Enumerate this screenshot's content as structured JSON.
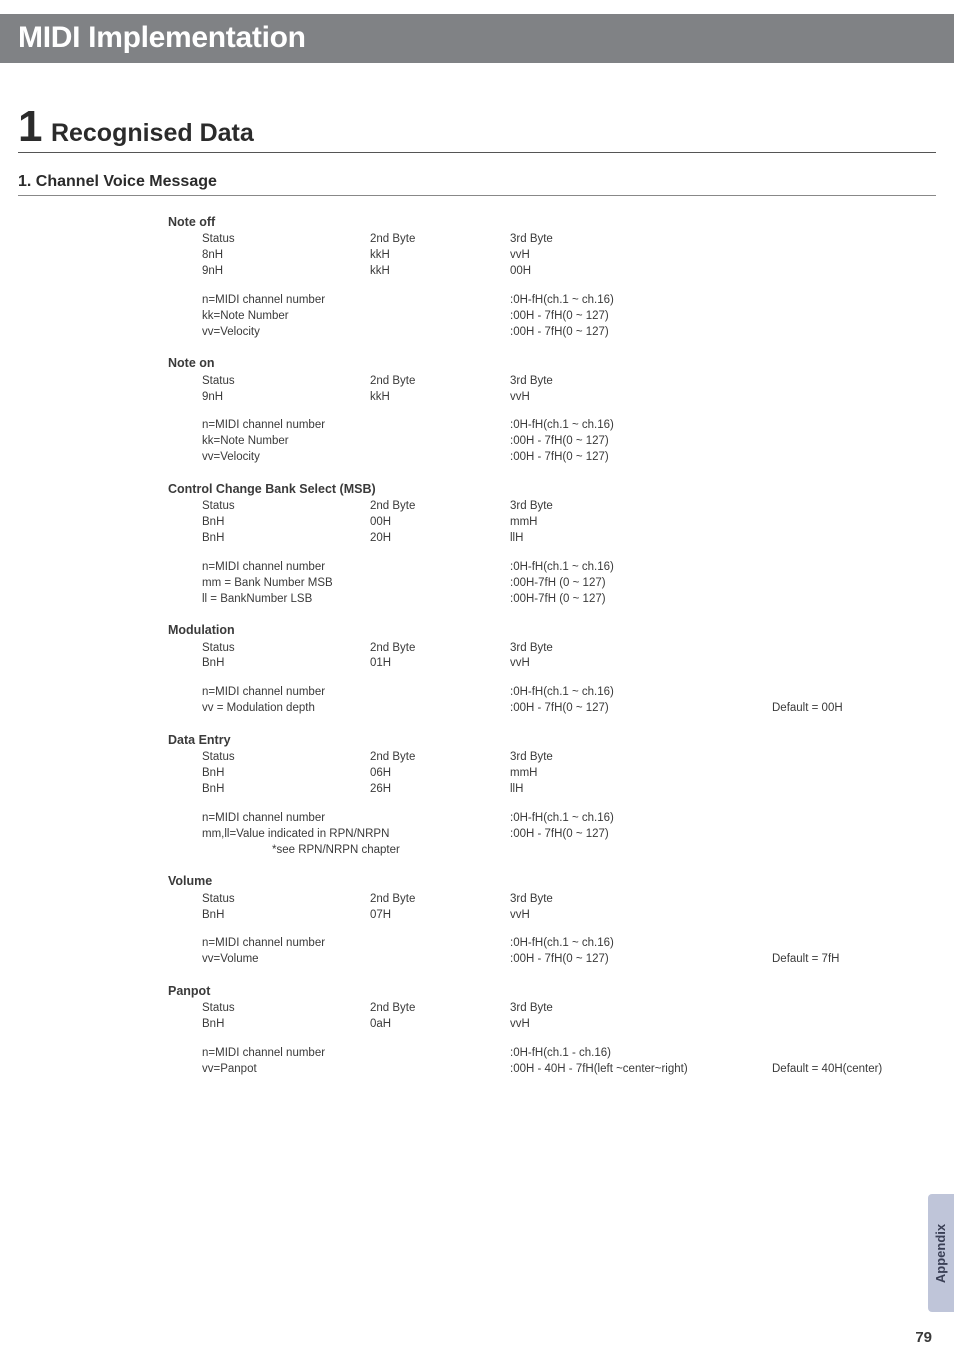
{
  "page": {
    "title": "MIDI Implementation",
    "section_number": "1",
    "section_title": "Recognised Data",
    "subsection": "1. Channel Voice Message",
    "side_tab": "Appendix",
    "page_number": "79"
  },
  "messages": [
    {
      "title": "Note off",
      "cols": [
        [
          "Status",
          "2nd Byte",
          "3rd Byte"
        ],
        [
          "8nH",
          "kkH",
          "vvH"
        ],
        [
          "9nH",
          "kkH",
          "00H"
        ]
      ],
      "defs": [
        [
          "n=MIDI channel number",
          ":0H-fH(ch.1 ~ ch.16)"
        ],
        [
          "kk=Note Number",
          ":00H - 7fH(0 ~ 127)"
        ],
        [
          "vv=Velocity",
          ":00H - 7fH(0 ~ 127)"
        ]
      ]
    },
    {
      "title": "Note on",
      "cols": [
        [
          "Status",
          "2nd Byte",
          "3rd Byte"
        ],
        [
          "9nH",
          "kkH",
          "vvH"
        ]
      ],
      "defs": [
        [
          "n=MIDI channel number",
          ":0H-fH(ch.1 ~ ch.16)"
        ],
        [
          "kk=Note Number",
          ":00H - 7fH(0 ~ 127)"
        ],
        [
          "vv=Velocity",
          ":00H - 7fH(0 ~ 127)"
        ]
      ]
    },
    {
      "title": "Control Change Bank Select (MSB)",
      "cols": [
        [
          "Status",
          "2nd Byte",
          "3rd Byte"
        ],
        [
          "BnH",
          "00H",
          "mmH"
        ],
        [
          "BnH",
          "20H",
          "llH"
        ]
      ],
      "defs": [
        [
          "n=MIDI channel number",
          ":0H-fH(ch.1 ~ ch.16)"
        ],
        [
          "mm = Bank Number MSB",
          ":00H-7fH (0 ~ 127)"
        ],
        [
          "ll = BankNumber LSB",
          ":00H-7fH (0 ~ 127)"
        ]
      ]
    },
    {
      "title": "Modulation",
      "cols": [
        [
          "Status",
          "2nd Byte",
          "3rd Byte"
        ],
        [
          "BnH",
          "01H",
          "vvH"
        ]
      ],
      "defs": [
        [
          "n=MIDI channel number",
          ":0H-fH(ch.1 ~ ch.16)",
          ""
        ],
        [
          "vv = Modulation depth",
          ":00H - 7fH(0 ~ 127)",
          "Default = 00H"
        ]
      ]
    },
    {
      "title": "Data Entry",
      "cols": [
        [
          "Status",
          "2nd Byte",
          "3rd Byte"
        ],
        [
          "BnH",
          "06H",
          "mmH"
        ],
        [
          "BnH",
          "26H",
          "llH"
        ]
      ],
      "defs": [
        [
          "n=MIDI channel number",
          ":0H-fH(ch.1 ~ ch.16)"
        ],
        [
          "mm,ll=Value indicated in RPN/NRPN",
          ":00H - 7fH(0 ~ 127)"
        ]
      ],
      "note": "*see RPN/NRPN chapter"
    },
    {
      "title": "Volume",
      "cols": [
        [
          "Status",
          "2nd Byte",
          "3rd Byte"
        ],
        [
          "BnH",
          "07H",
          "vvH"
        ]
      ],
      "defs": [
        [
          "n=MIDI channel number",
          ":0H-fH(ch.1 ~ ch.16)",
          ""
        ],
        [
          "vv=Volume",
          ":00H - 7fH(0 ~ 127)",
          "Default = 7fH"
        ]
      ]
    },
    {
      "title": "Panpot",
      "cols": [
        [
          "Status",
          "2nd Byte",
          "3rd Byte"
        ],
        [
          "BnH",
          "0aH",
          "vvH"
        ]
      ],
      "defs": [
        [
          "n=MIDI channel number",
          ":0H-fH(ch.1 - ch.16)",
          ""
        ],
        [
          "vv=Panpot",
          ":00H - 40H - 7fH(left ~center~right)",
          "Default = 40H(center)"
        ]
      ]
    }
  ]
}
